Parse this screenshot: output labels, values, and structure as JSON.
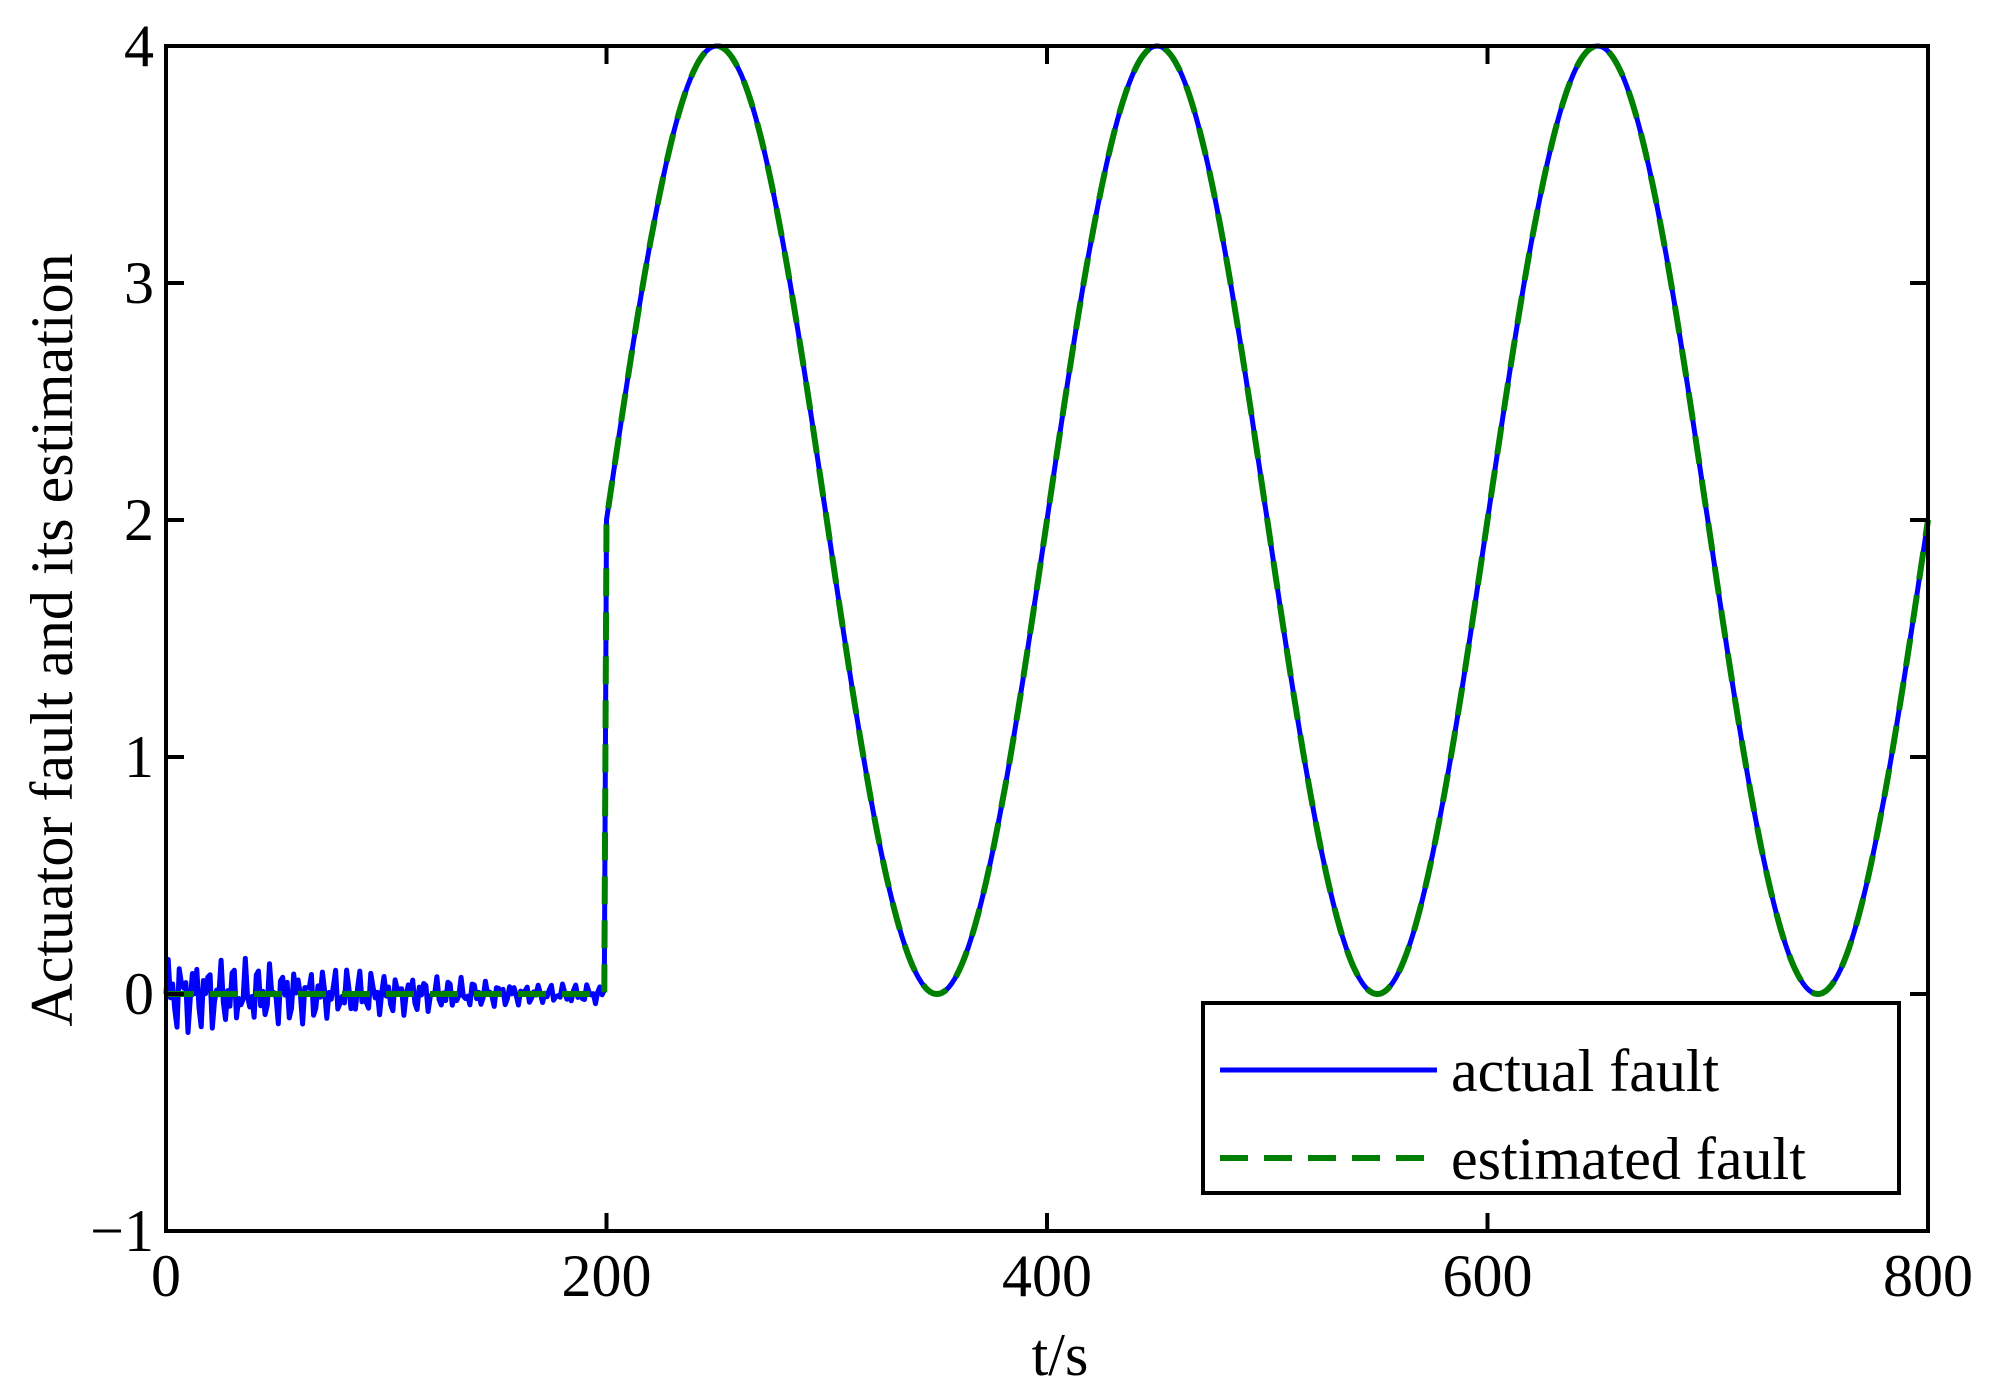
{
  "chart_data": {
    "type": "line",
    "title": "",
    "xlabel": "t/s",
    "ylabel": "Actuator fault and its estimation",
    "xlim": [
      0,
      800
    ],
    "ylim": [
      -1,
      4
    ],
    "xticks": [
      0,
      200,
      400,
      600,
      800
    ],
    "yticks": [
      -1,
      0,
      1,
      2,
      3,
      4
    ],
    "x_tick_labels": [
      "0",
      "200",
      "400",
      "600",
      "800"
    ],
    "y_tick_labels": [
      "−1",
      "0",
      "1",
      "2",
      "3",
      "4"
    ],
    "grid": false,
    "box": true,
    "legend_position": "bottom-right",
    "series": [
      {
        "name": "actual fault",
        "color": "#0000ff",
        "line_style": "solid",
        "description_of_shape": "noise around 0 until t=200, then 2 + 2*sin(2*pi*(t-200)/200)",
        "x": [
          0,
          200,
          225,
          250,
          275,
          300,
          325,
          350,
          375,
          400,
          425,
          450,
          475,
          500,
          525,
          550,
          575,
          600,
          625,
          650,
          675,
          700,
          725,
          750,
          775,
          800
        ],
        "y": [
          0,
          0,
          3.41,
          4,
          3.41,
          2,
          0.59,
          0,
          0.59,
          2,
          3.41,
          4,
          3.41,
          2,
          0.59,
          0,
          0.59,
          2,
          3.41,
          4,
          3.41,
          2,
          0.59,
          0,
          0.59,
          2
        ]
      },
      {
        "name": "estimated fault",
        "color": "#008000",
        "line_style": "dashed",
        "x": [
          0,
          200,
          225,
          250,
          275,
          300,
          325,
          350,
          375,
          400,
          425,
          450,
          475,
          500,
          525,
          550,
          575,
          600,
          625,
          650,
          675,
          700,
          725,
          750,
          775,
          800
        ],
        "y": [
          0,
          0,
          3.41,
          4,
          3.41,
          2,
          0.59,
          0,
          0.59,
          2,
          3.41,
          4,
          3.41,
          2,
          0.59,
          0,
          0.59,
          2,
          3.41,
          4,
          3.41,
          2,
          0.59,
          0,
          0.59,
          2
        ]
      }
    ]
  }
}
